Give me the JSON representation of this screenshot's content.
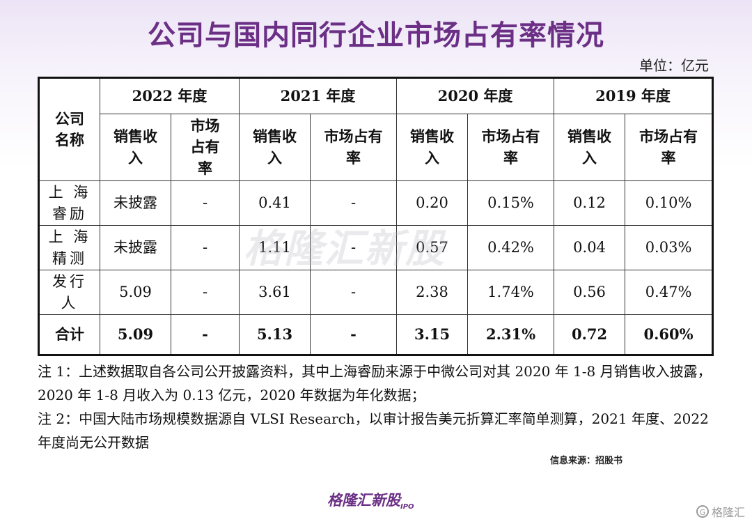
{
  "title": "公司与国内同行企业市场占有率情况",
  "unit": "单位：亿元",
  "table": {
    "corner_header": "公司\n名称",
    "years": [
      "2022 年度",
      "2021 年度",
      "2020 年度",
      "2019 年度"
    ],
    "sub_headers": {
      "sales": "销售收\n入",
      "share_2022": "市场\n占有\n率",
      "share": "市场占有\n率"
    },
    "rows": [
      {
        "name": "上 海\n睿励",
        "cells": [
          "未披露",
          "-",
          "0.41",
          "-",
          "0.20",
          "0.15%",
          "0.12",
          "0.10%"
        ]
      },
      {
        "name": "上 海\n精测",
        "cells": [
          "未披露",
          "-",
          "1.11",
          "-",
          "0.57",
          "0.42%",
          "0.04",
          "0.03%"
        ]
      },
      {
        "name": "发行\n人",
        "cells": [
          "5.09",
          "-",
          "3.61",
          "-",
          "2.38",
          "1.74%",
          "0.56",
          "0.47%"
        ]
      }
    ],
    "total": {
      "name": "合计",
      "cells": [
        "5.09",
        "-",
        "5.13",
        "-",
        "3.15",
        "2.31%",
        "0.72",
        "0.60%"
      ]
    }
  },
  "watermark": "格隆汇新股",
  "notes": [
    "注 1：上述数据取自各公司公开披露资料，其中上海睿励来源于中微公司对其 2020 年 1-8 月销售收入披露，2020 年 1-8 月收入为 0.13 亿元，2020 年数据为年化数据；",
    "注 2：中国大陆市场规模数据源自 VLSI Research，以审计报告美元折算汇率简单测算，2021 年度、2022 年度尚无公开数据"
  ],
  "source": "信息来源：招股书",
  "logo_bottom": "格隆汇新股",
  "logo_bottom_suffix": "IPO",
  "logo_corner_icon": "G",
  "logo_corner": "格隆汇",
  "colors": {
    "title": "#6b2f86",
    "background_top": "#ece4f6"
  }
}
